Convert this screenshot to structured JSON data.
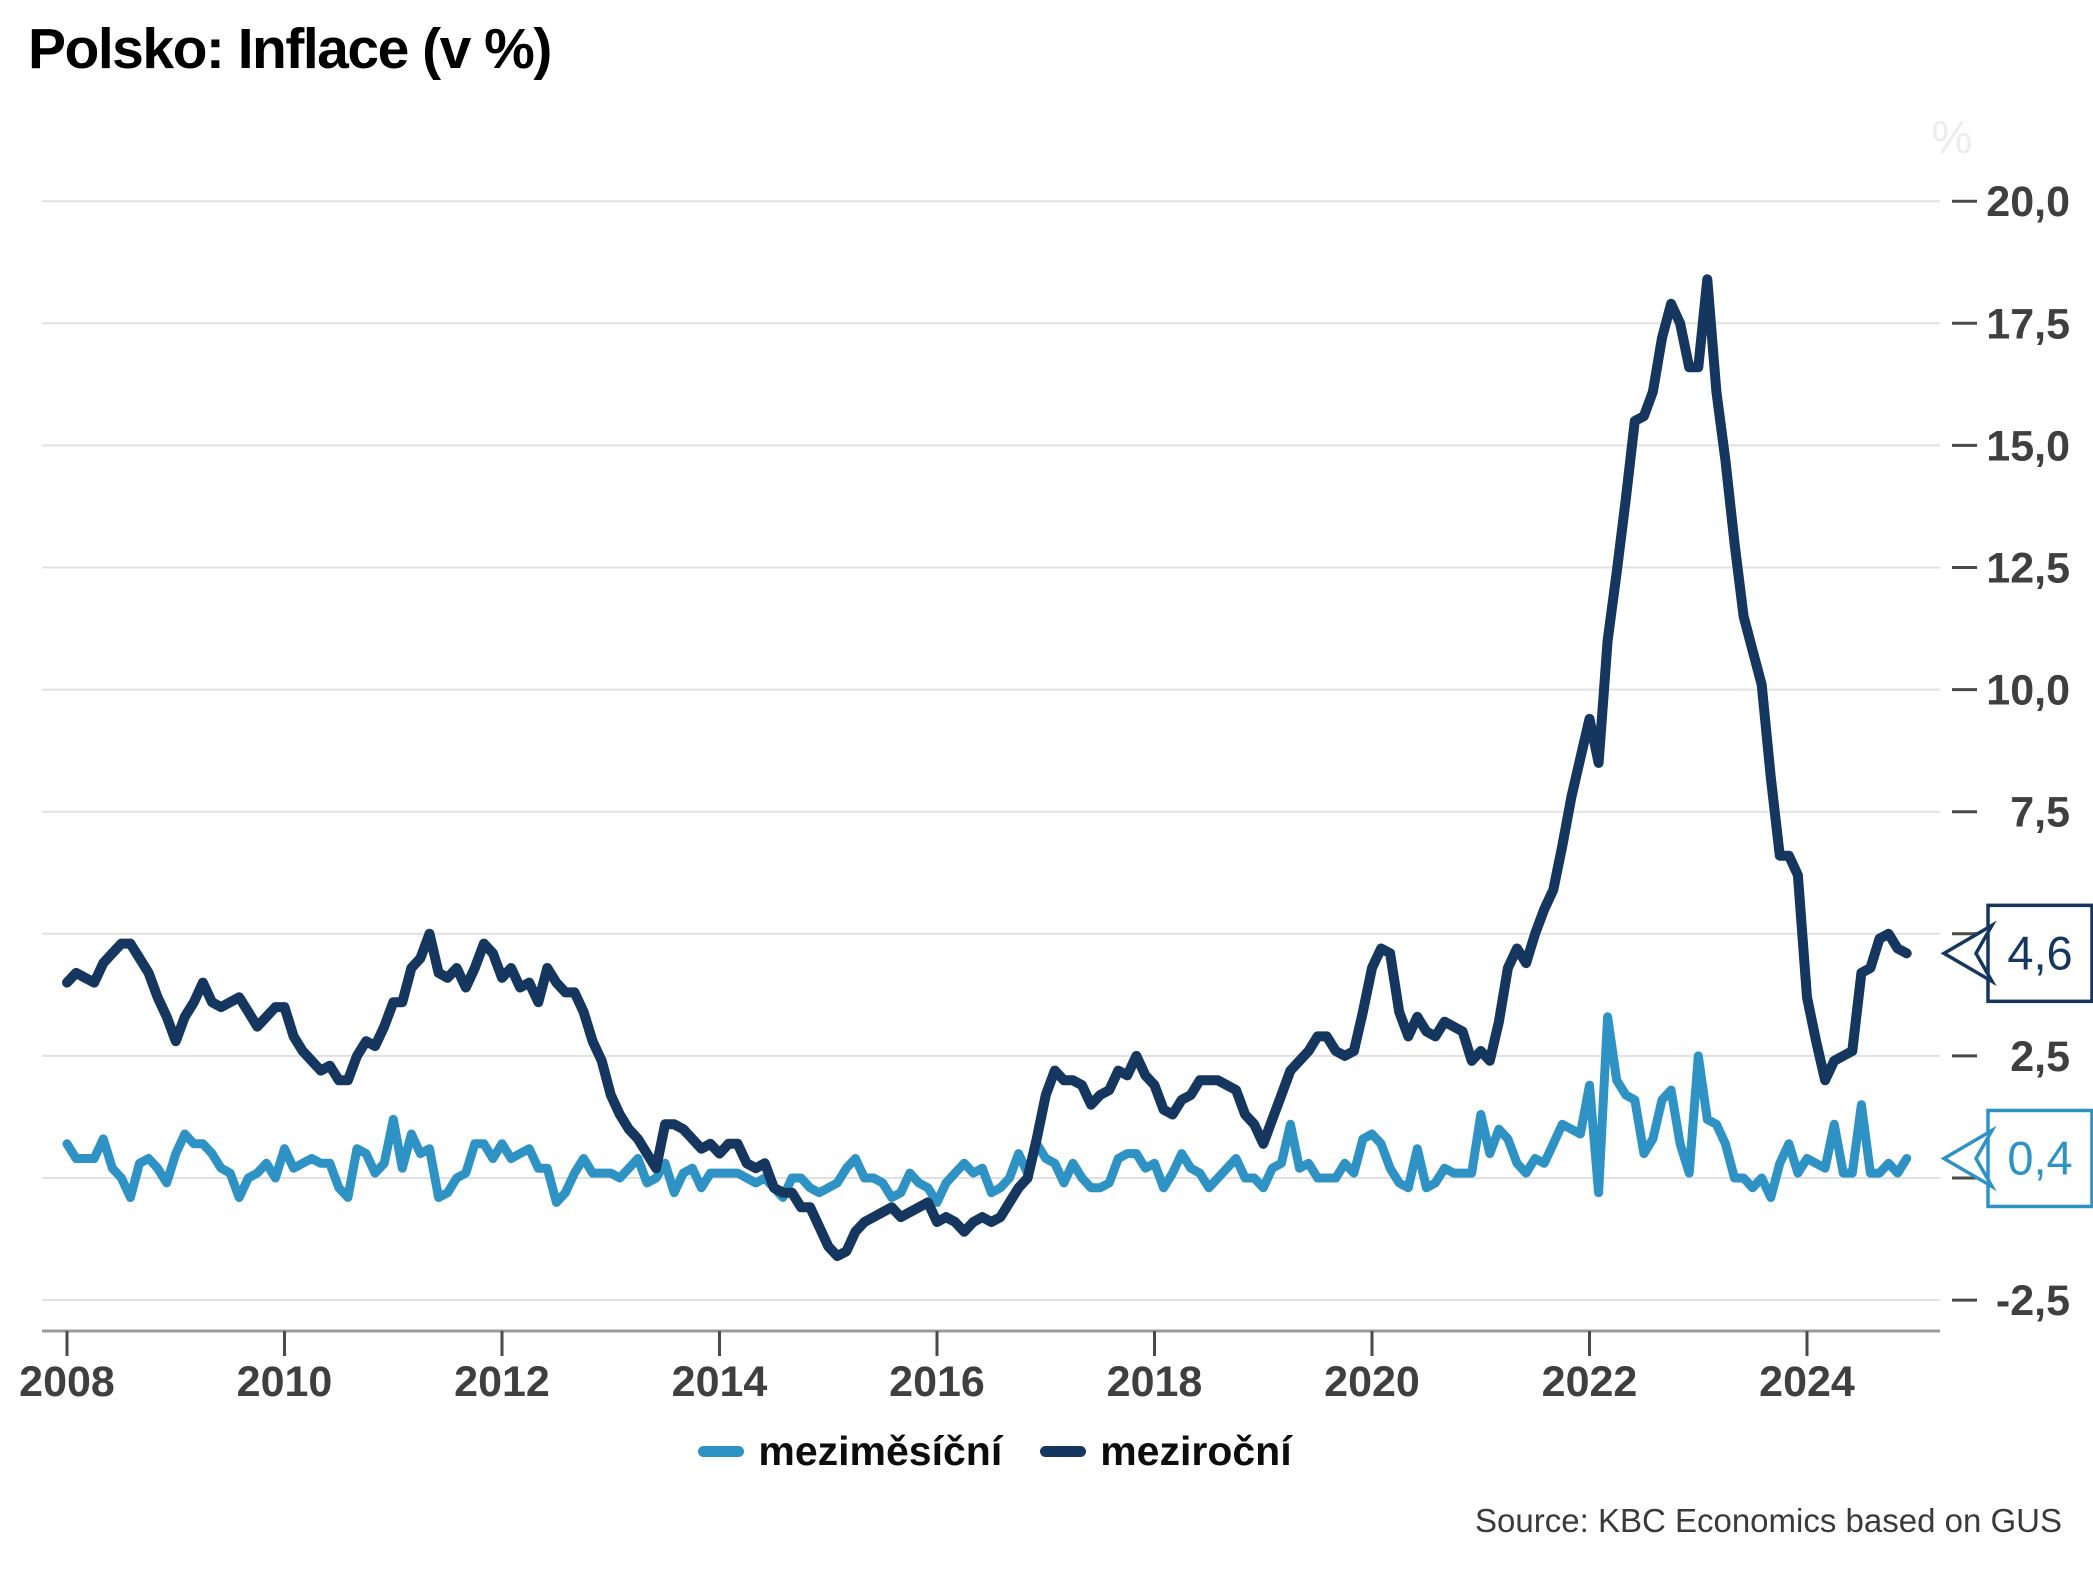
{
  "title": "Polsko: Inflace (v %)",
  "y_axis_unit": "%",
  "source": "Source: KBC Economics based on GUS",
  "chart_data": {
    "type": "line",
    "title": "Polsko: Inflace (v %)",
    "frequency": "monthly",
    "x_start": "2008-01",
    "x_end": "2024-12",
    "x_tick_labels": [
      "2008",
      "2010",
      "2012",
      "2014",
      "2016",
      "2018",
      "2020",
      "2022",
      "2024"
    ],
    "y_tick_labels": [
      "20,0",
      "17,5",
      "15,0",
      "12,5",
      "10,0",
      "7,5",
      "5,0",
      "2,5",
      "0,0",
      "-2,5"
    ],
    "y_tick_values": [
      20.0,
      17.5,
      15.0,
      12.5,
      10.0,
      7.5,
      5.0,
      2.5,
      0.0,
      -2.5
    ],
    "ylim": [
      -2.5,
      20.0
    ],
    "grid": "horizontal",
    "legend_position": "bottom",
    "series": [
      {
        "name": "meziměsíční",
        "color": "#2e93c4",
        "last_value_label": "0,4",
        "values": [
          0.7,
          0.4,
          0.4,
          0.4,
          0.8,
          0.2,
          0.0,
          -0.4,
          0.3,
          0.4,
          0.2,
          -0.1,
          0.5,
          0.9,
          0.7,
          0.7,
          0.5,
          0.2,
          0.1,
          -0.4,
          0.0,
          0.1,
          0.3,
          0.0,
          0.6,
          0.2,
          0.3,
          0.4,
          0.3,
          0.3,
          -0.2,
          -0.4,
          0.6,
          0.5,
          0.1,
          0.3,
          1.2,
          0.2,
          0.9,
          0.5,
          0.6,
          -0.4,
          -0.3,
          0.0,
          0.1,
          0.7,
          0.7,
          0.4,
          0.7,
          0.4,
          0.5,
          0.6,
          0.2,
          0.2,
          -0.5,
          -0.3,
          0.1,
          0.4,
          0.1,
          0.1,
          0.1,
          0.0,
          0.2,
          0.4,
          -0.1,
          0.0,
          0.3,
          -0.3,
          0.1,
          0.2,
          -0.2,
          0.1,
          0.1,
          0.1,
          0.1,
          0.0,
          -0.1,
          0.0,
          -0.2,
          -0.4,
          0.0,
          0.0,
          -0.2,
          -0.3,
          -0.2,
          -0.1,
          0.2,
          0.4,
          0.0,
          0.0,
          -0.1,
          -0.4,
          -0.3,
          0.1,
          -0.1,
          -0.2,
          -0.5,
          -0.1,
          0.1,
          0.3,
          0.1,
          0.2,
          -0.3,
          -0.2,
          0.0,
          0.5,
          0.1,
          0.7,
          0.4,
          0.3,
          -0.1,
          0.3,
          0.0,
          -0.2,
          -0.2,
          -0.1,
          0.4,
          0.5,
          0.5,
          0.2,
          0.3,
          -0.2,
          0.1,
          0.5,
          0.2,
          0.1,
          -0.2,
          0.0,
          0.2,
          0.4,
          0.0,
          0.0,
          -0.2,
          0.2,
          0.3,
          1.1,
          0.2,
          0.3,
          0.0,
          0.0,
          0.0,
          0.3,
          0.1,
          0.8,
          0.9,
          0.7,
          0.2,
          -0.1,
          -0.2,
          0.6,
          -0.2,
          -0.1,
          0.2,
          0.1,
          0.1,
          0.1,
          1.3,
          0.5,
          1.0,
          0.8,
          0.3,
          0.1,
          0.4,
          0.3,
          0.7,
          1.1,
          1.0,
          0.9,
          1.9,
          -0.3,
          3.3,
          2.0,
          1.7,
          1.6,
          0.5,
          0.8,
          1.6,
          1.8,
          0.7,
          0.1,
          2.5,
          1.2,
          1.1,
          0.7,
          0.0,
          0.0,
          -0.2,
          0.0,
          -0.4,
          0.3,
          0.7,
          0.1,
          0.4,
          0.3,
          0.2,
          1.1,
          0.1,
          0.1,
          1.5,
          0.1,
          0.1,
          0.3,
          0.1,
          0.4
        ]
      },
      {
        "name": "meziroční",
        "color": "#14365f",
        "last_value_label": "4,6",
        "values": [
          4.0,
          4.2,
          4.1,
          4.0,
          4.4,
          4.6,
          4.8,
          4.8,
          4.5,
          4.2,
          3.7,
          3.3,
          2.8,
          3.3,
          3.6,
          4.0,
          3.6,
          3.5,
          3.6,
          3.7,
          3.4,
          3.1,
          3.3,
          3.5,
          3.5,
          2.9,
          2.6,
          2.4,
          2.2,
          2.3,
          2.0,
          2.0,
          2.5,
          2.8,
          2.7,
          3.1,
          3.6,
          3.6,
          4.3,
          4.5,
          5.0,
          4.2,
          4.1,
          4.3,
          3.9,
          4.3,
          4.8,
          4.6,
          4.1,
          4.3,
          3.9,
          4.0,
          3.6,
          4.3,
          4.0,
          3.8,
          3.8,
          3.4,
          2.8,
          2.4,
          1.7,
          1.3,
          1.0,
          0.8,
          0.5,
          0.2,
          1.1,
          1.1,
          1.0,
          0.8,
          0.6,
          0.7,
          0.5,
          0.7,
          0.7,
          0.3,
          0.2,
          0.3,
          -0.2,
          -0.3,
          -0.3,
          -0.6,
          -0.6,
          -1.0,
          -1.4,
          -1.6,
          -1.5,
          -1.1,
          -0.9,
          -0.8,
          -0.7,
          -0.6,
          -0.8,
          -0.7,
          -0.6,
          -0.5,
          -0.9,
          -0.8,
          -0.9,
          -1.1,
          -0.9,
          -0.8,
          -0.9,
          -0.8,
          -0.5,
          -0.2,
          0.0,
          0.8,
          1.7,
          2.2,
          2.0,
          2.0,
          1.9,
          1.5,
          1.7,
          1.8,
          2.2,
          2.1,
          2.5,
          2.1,
          1.9,
          1.4,
          1.3,
          1.6,
          1.7,
          2.0,
          2.0,
          2.0,
          1.9,
          1.8,
          1.3,
          1.1,
          0.7,
          1.2,
          1.7,
          2.2,
          2.4,
          2.6,
          2.9,
          2.9,
          2.6,
          2.5,
          2.6,
          3.4,
          4.3,
          4.7,
          4.6,
          3.4,
          2.9,
          3.3,
          3.0,
          2.9,
          3.2,
          3.1,
          3.0,
          2.4,
          2.6,
          2.4,
          3.2,
          4.3,
          4.7,
          4.4,
          5.0,
          5.5,
          5.9,
          6.8,
          7.8,
          8.6,
          9.4,
          8.5,
          11.0,
          12.4,
          13.9,
          15.5,
          15.6,
          16.1,
          17.2,
          17.9,
          17.5,
          16.6,
          16.6,
          18.4,
          16.1,
          14.7,
          13.0,
          11.5,
          10.8,
          10.1,
          8.2,
          6.6,
          6.6,
          6.2,
          3.7,
          2.8,
          2.0,
          2.4,
          2.5,
          2.6,
          4.2,
          4.3,
          4.9,
          5.0,
          4.7,
          4.6
        ]
      }
    ]
  }
}
